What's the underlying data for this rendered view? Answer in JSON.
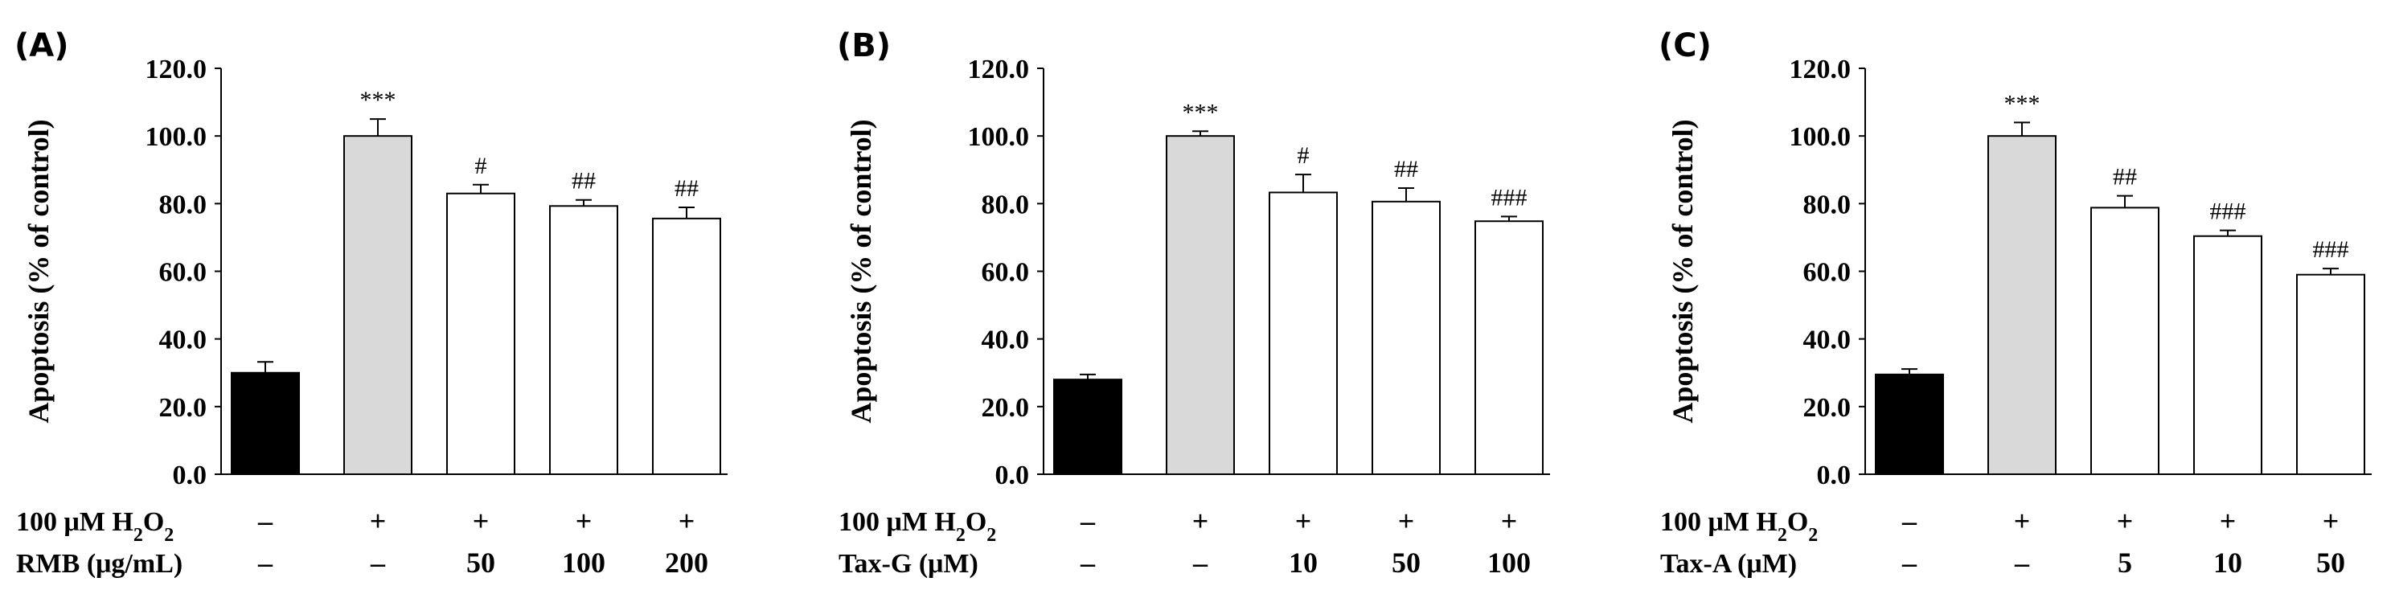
{
  "chart_data": [
    {
      "type": "bar",
      "panel_label": "(A)",
      "ylabel": "Apoptosis (% of control)",
      "ylim": [
        0,
        120
      ],
      "yticks": [
        "0.0",
        "20.0",
        "40.0",
        "60.0",
        "80.0",
        "100.0",
        "120.0"
      ],
      "values": [
        30.0,
        100.0,
        83.0,
        79.3,
        75.6
      ],
      "errors": [
        3.2,
        5.0,
        2.6,
        1.8,
        3.3
      ],
      "fills": [
        "#000000",
        "#d9d9d9",
        "#ffffff",
        "#ffffff",
        "#ffffff"
      ],
      "annotations": [
        "",
        "***",
        "#",
        "##",
        "##"
      ],
      "row1": {
        "label": "100 μM H",
        "sub": "2",
        "tail": "O",
        "sub2": "2",
        "values": [
          "–",
          "+",
          "+",
          "+",
          "+"
        ]
      },
      "row2": {
        "label": "RMB (μg/mL)",
        "values": [
          "–",
          "–",
          "50",
          "100",
          "200"
        ]
      }
    },
    {
      "type": "bar",
      "panel_label": "(B)",
      "ylabel": "Apoptosis (% of control)",
      "ylim": [
        0,
        120
      ],
      "yticks": [
        "0.0",
        "20.0",
        "40.0",
        "60.0",
        "80.0",
        "100.0",
        "120.0"
      ],
      "values": [
        28.0,
        100.0,
        83.3,
        80.6,
        74.8
      ],
      "errors": [
        1.5,
        1.4,
        5.3,
        4.0,
        1.4
      ],
      "fills": [
        "#000000",
        "#d9d9d9",
        "#ffffff",
        "#ffffff",
        "#ffffff"
      ],
      "annotations": [
        "",
        "***",
        "#",
        "##",
        "###"
      ],
      "row1": {
        "label": "100 μM H",
        "sub": "2",
        "tail": "O",
        "sub2": "2",
        "values": [
          "–",
          "+",
          "+",
          "+",
          "+"
        ]
      },
      "row2": {
        "label": "Tax-G (μM)",
        "values": [
          "–",
          "–",
          "10",
          "50",
          "100"
        ]
      }
    },
    {
      "type": "bar",
      "panel_label": "(C)",
      "ylabel": "Apoptosis (% of control)",
      "ylim": [
        0,
        120
      ],
      "yticks": [
        "0.0",
        "20.0",
        "40.0",
        "60.0",
        "80.0",
        "100.0",
        "120.0"
      ],
      "values": [
        29.5,
        100.0,
        78.8,
        70.4,
        59.0
      ],
      "errors": [
        1.6,
        4.0,
        3.5,
        1.7,
        1.8
      ],
      "fills": [
        "#000000",
        "#d9d9d9",
        "#ffffff",
        "#ffffff",
        "#ffffff"
      ],
      "annotations": [
        "",
        "***",
        "##",
        "###",
        "###"
      ],
      "row1": {
        "label": "100 μM H",
        "sub": "2",
        "tail": "O",
        "sub2": "2",
        "values": [
          "–",
          "+",
          "+",
          "+",
          "+"
        ]
      },
      "row2": {
        "label": "Tax-A (μM)",
        "values": [
          "–",
          "–",
          "5",
          "10",
          "50"
        ]
      }
    }
  ]
}
